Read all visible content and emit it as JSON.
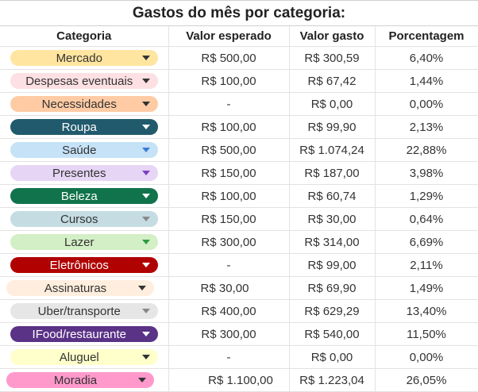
{
  "title": "Gastos do mês por categoria:",
  "headers": [
    "Categoria",
    "Valor esperado",
    "Valor gasto",
    "Porcentagem"
  ],
  "rows": [
    {
      "category": "Mercado",
      "expected": "R$ 500,00",
      "spent": "R$ 300,59",
      "percent": "6,40%",
      "color": "#ffe5a0"
    },
    {
      "category": "Despesas eventuais",
      "expected": "R$ 100,00",
      "spent": "R$ 67,42",
      "percent": "1,44%",
      "color": "#fde0e4"
    },
    {
      "category": "Necessidades",
      "expected": "-",
      "spent": "R$ 0,00",
      "percent": "0,00%",
      "color": "#ffcba4"
    },
    {
      "category": "Roupa",
      "expected": "R$ 100,00",
      "spent": "R$ 99,90",
      "percent": "2,13%",
      "color": "#215a6d"
    },
    {
      "category": "Saúde",
      "expected": "R$ 500,00",
      "spent": "R$ 1.074,24",
      "percent": "22,88%",
      "color": "#c6e2f7"
    },
    {
      "category": "Presentes",
      "expected": "R$ 150,00",
      "spent": "R$ 187,00",
      "percent": "3,98%",
      "color": "#e6d5f5"
    },
    {
      "category": "Beleza",
      "expected": "R$ 100,00",
      "spent": "R$ 60,74",
      "percent": "1,29%",
      "color": "#11734b"
    },
    {
      "category": "Cursos",
      "expected": "R$ 150,00",
      "spent": "R$ 30,00",
      "percent": "0,64%",
      "color": "#c5dce3"
    },
    {
      "category": "Lazer",
      "expected": "R$ 300,00",
      "spent": "R$ 314,00",
      "percent": "6,69%",
      "color": "#d3efc6"
    },
    {
      "category": "Eletrônicos",
      "expected": "-",
      "spent": "R$ 99,00",
      "percent": "2,11%",
      "color": "#b10202"
    },
    {
      "category": "Assinaturas",
      "expected": "R$ 30,00",
      "spent": "R$ 69,90",
      "percent": "1,49%",
      "color": "#ffeedd"
    },
    {
      "category": "Uber/transporte",
      "expected": "R$ 400,00",
      "spent": "R$ 629,29",
      "percent": "13,40%",
      "color": "#e6e6e6"
    },
    {
      "category": "IFood/restaurante",
      "expected": "R$ 300,00",
      "spent": "R$ 540,00",
      "percent": "11,50%",
      "color": "#5a3286"
    },
    {
      "category": "Aluguel",
      "expected": "-",
      "spent": "R$ 0,00",
      "percent": "0,00%",
      "color": "#ffffcc"
    },
    {
      "category": "Moradia",
      "expected": "R$ 1.100,00",
      "spent": "R$ 1.223,04",
      "percent": "26,05%",
      "color": "#ff99cc"
    }
  ]
}
